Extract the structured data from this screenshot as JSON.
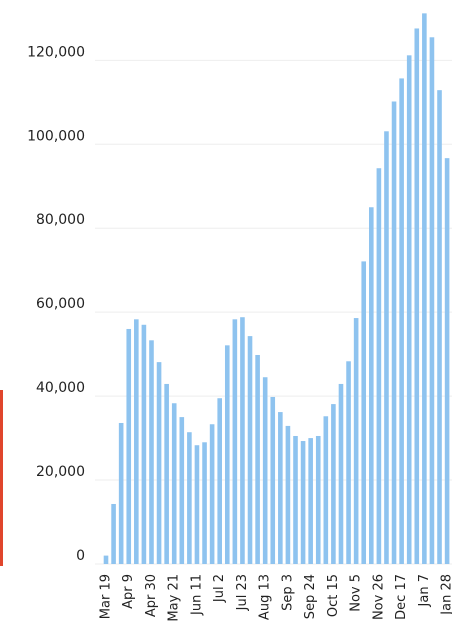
{
  "chart_data": {
    "type": "bar",
    "categories": [
      "Mar 19",
      null,
      null,
      "Apr 9",
      null,
      null,
      "Apr 30",
      null,
      null,
      "May 21",
      null,
      null,
      "Jun 11",
      null,
      null,
      "Jul 2",
      null,
      null,
      "Jul 23",
      null,
      null,
      "Aug 13",
      null,
      null,
      "Sep 3",
      null,
      null,
      "Sep 24",
      null,
      null,
      "Oct 15",
      null,
      null,
      "Nov 5",
      null,
      null,
      "Nov 26",
      null,
      null,
      "Dec 17",
      null,
      null,
      "Jan 7",
      null,
      null,
      "Jan 28"
    ],
    "values": [
      2000,
      14300,
      33600,
      56000,
      58300,
      57000,
      53300,
      48100,
      42900,
      38300,
      35000,
      31400,
      28300,
      29000,
      33300,
      39500,
      52100,
      58300,
      58800,
      54300,
      49800,
      44500,
      39800,
      36200,
      32900,
      30500,
      29300,
      30000,
      30500,
      35200,
      38100,
      42900,
      48300,
      58600,
      72100,
      85000,
      94300,
      103100,
      110200,
      115700,
      121200,
      127600,
      131200,
      125500,
      112900,
      96700
    ],
    "color": "#8ec3ef",
    "ylim": [
      0,
      132000
    ],
    "yticks": [
      0,
      {
        "value": 20000,
        "label": "20,000"
      },
      {
        "value": 40000,
        "label": "40,000"
      },
      {
        "value": 60000,
        "label": "60,000"
      },
      {
        "value": 80000,
        "label": "80,000"
      },
      {
        "value": 100000,
        "label": "100,000"
      },
      {
        "value": 120000,
        "label": "120,000"
      }
    ],
    "grid": true
  }
}
